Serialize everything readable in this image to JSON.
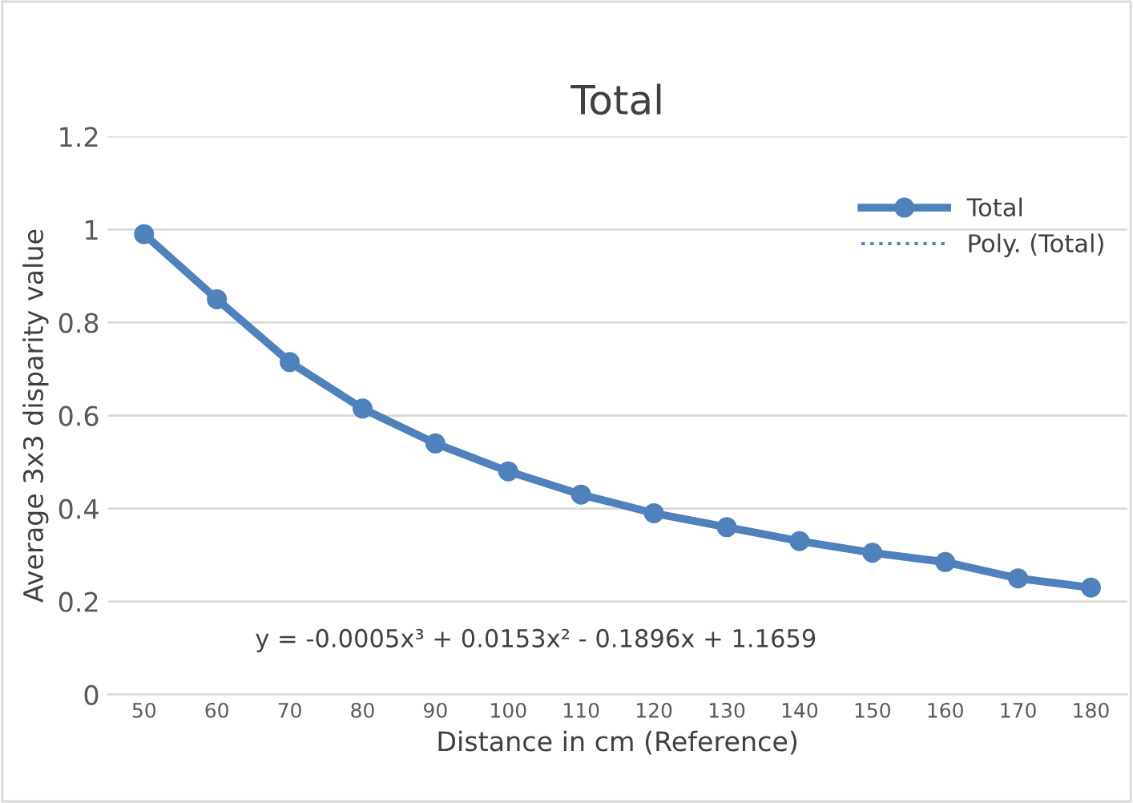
{
  "chart_data": {
    "type": "line",
    "title": "Total",
    "xlabel": "Distance in cm (Reference)",
    "ylabel": "Average 3x3 disparity value",
    "categories": [
      "50",
      "60",
      "70",
      "80",
      "90",
      "100",
      "110",
      "120",
      "130",
      "140",
      "150",
      "160",
      "170",
      "180"
    ],
    "series": [
      {
        "name": "Total",
        "color": "#4f81bd",
        "marker": "circle",
        "line_style": "solid",
        "values": [
          0.99,
          0.85,
          0.715,
          0.615,
          0.54,
          0.48,
          0.43,
          0.39,
          0.36,
          0.33,
          0.305,
          0.285,
          0.25,
          0.23
        ]
      },
      {
        "name": "Poly. (Total)",
        "color": "#4f81bd",
        "marker": "none",
        "line_style": "dotted",
        "values": [
          null,
          null,
          null,
          null,
          null,
          null,
          null,
          null,
          null,
          null,
          null,
          null,
          null,
          null
        ]
      }
    ],
    "ylim": [
      0,
      1.2
    ],
    "yticks": [
      0,
      0.2,
      0.4,
      0.6,
      0.8,
      1,
      1.2
    ],
    "grid": "y",
    "legend": "top right",
    "annotations": [
      "y = -0.0005x³ + 0.0153x² - 0.1896x + 1.1659"
    ]
  }
}
